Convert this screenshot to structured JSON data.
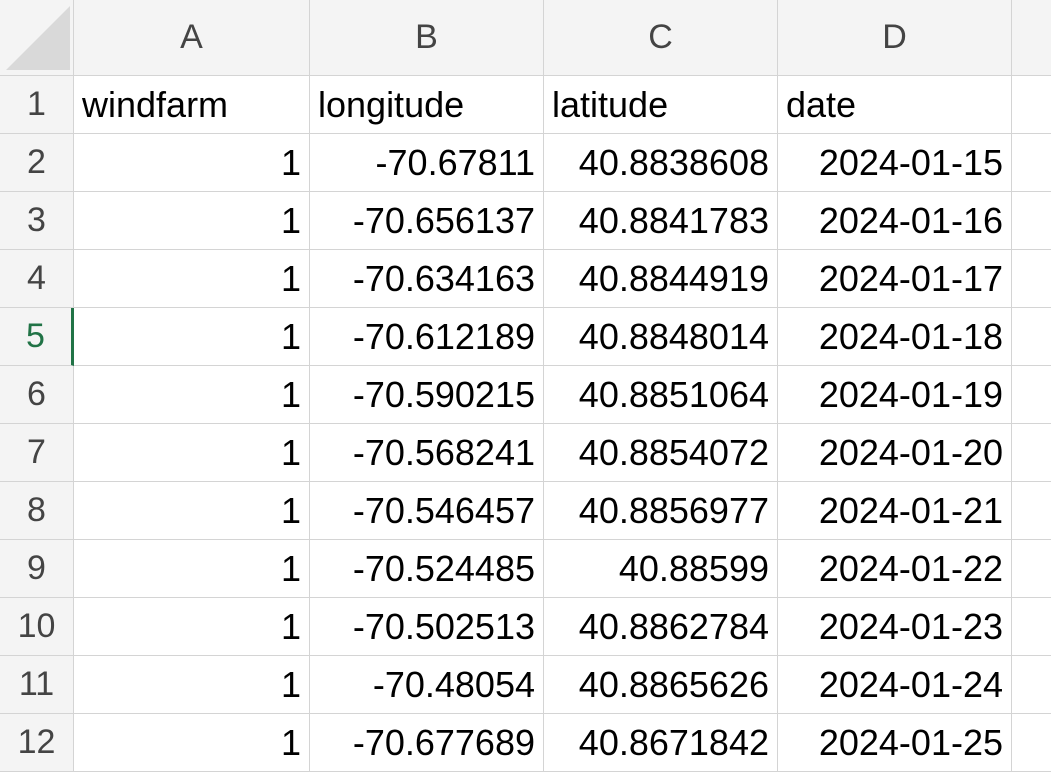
{
  "columns": [
    "A",
    "B",
    "C",
    "D"
  ],
  "row_numbers": [
    "1",
    "2",
    "3",
    "4",
    "5",
    "6",
    "7",
    "8",
    "9",
    "10",
    "11",
    "12"
  ],
  "active_row": "5",
  "header_row": {
    "A": "windfarm",
    "B": "longitude",
    "C": "latitude",
    "D": "date"
  },
  "rows": [
    {
      "A": "1",
      "B": "-70.67811",
      "C": "40.8838608",
      "D": "2024-01-15"
    },
    {
      "A": "1",
      "B": "-70.656137",
      "C": "40.8841783",
      "D": "2024-01-16"
    },
    {
      "A": "1",
      "B": "-70.634163",
      "C": "40.8844919",
      "D": "2024-01-17"
    },
    {
      "A": "1",
      "B": "-70.612189",
      "C": "40.8848014",
      "D": "2024-01-18"
    },
    {
      "A": "1",
      "B": "-70.590215",
      "C": "40.8851064",
      "D": "2024-01-19"
    },
    {
      "A": "1",
      "B": "-70.568241",
      "C": "40.8854072",
      "D": "2024-01-20"
    },
    {
      "A": "1",
      "B": "-70.546457",
      "C": "40.8856977",
      "D": "2024-01-21"
    },
    {
      "A": "1",
      "B": "-70.524485",
      "C": "40.88599",
      "D": "2024-01-22"
    },
    {
      "A": "1",
      "B": "-70.502513",
      "C": "40.8862784",
      "D": "2024-01-23"
    },
    {
      "A": "1",
      "B": "-70.48054",
      "C": "40.8865626",
      "D": "2024-01-24"
    },
    {
      "A": "1",
      "B": "-70.677689",
      "C": "40.8671842",
      "D": "2024-01-25"
    }
  ],
  "colors": {
    "header_bg": "#f4f4f4",
    "gridline": "#d4d4d4",
    "active_accent": "#217346"
  }
}
